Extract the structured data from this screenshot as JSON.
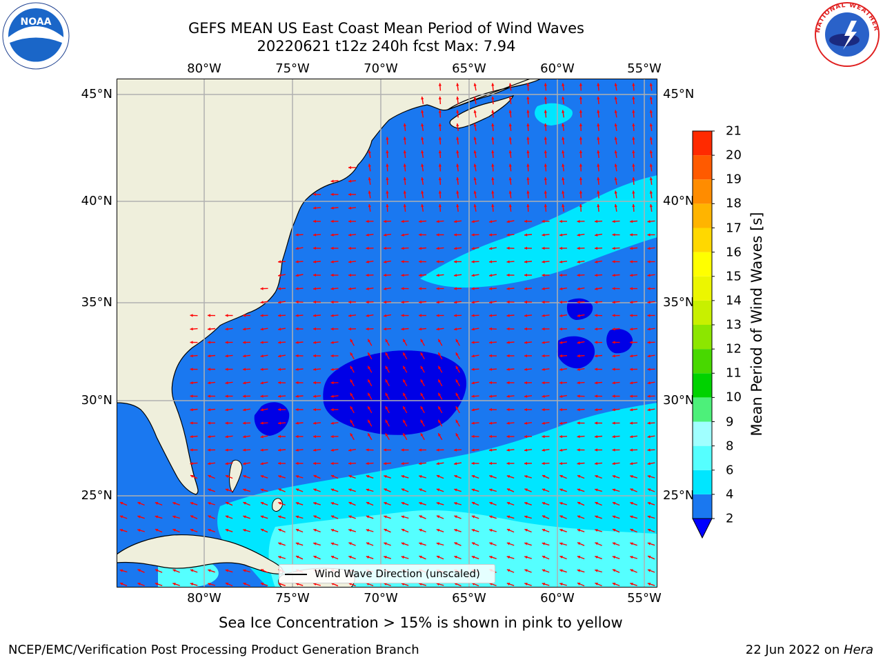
{
  "header": {
    "title_line1": "GEFS MEAN US East Coast Mean Period of Wind Waves",
    "title_line2": "20220621 t12z 240h fcst   Max: 7.94"
  },
  "map": {
    "projection": "PlateCarree",
    "lon_range": [
      -85,
      -54.5
    ],
    "lat_range": [
      20.5,
      45.8
    ],
    "lon_ticks": [
      "80°W",
      "75°W",
      "70°W",
      "65°W",
      "60°W",
      "55°W"
    ],
    "lat_ticks": [
      "45°N",
      "40°N",
      "35°N",
      "30°N",
      "25°N"
    ],
    "land_color": "#efefdc",
    "arrow_color": "#ff0000",
    "grid_color": "#b0b0b0",
    "legend_text": "Wind Wave Direction (unscaled)"
  },
  "colorbar": {
    "label": "Mean Period of Wind Waves [s]",
    "ticks": [
      "2",
      "4",
      "6",
      "8",
      "9",
      "10",
      "11",
      "12",
      "13",
      "14",
      "15",
      "16",
      "17",
      "18",
      "19",
      "20",
      "21"
    ],
    "colors": [
      "#1a78f0",
      "#00e6ff",
      "#55ffff",
      "#a0ffff",
      "#4df07a",
      "#00d200",
      "#48d800",
      "#8ce600",
      "#c8f000",
      "#ecf600",
      "#ffff00",
      "#ffd800",
      "#ffb400",
      "#ff8c00",
      "#ff5a00",
      "#ff2a00"
    ],
    "extend_color": "#0000ff"
  },
  "footer": {
    "note": "Sea Ice Concentration > 15% is shown in pink to yellow",
    "credit": "NCEP/EMC/Verification Post Processing Product Generation Branch",
    "date_prefix": "22 Jun 2022 on ",
    "date_host": "Hera"
  },
  "logos": {
    "noaa_text": "NOAA",
    "nws_text": "NATIONAL WEATHER SERVICE"
  }
}
